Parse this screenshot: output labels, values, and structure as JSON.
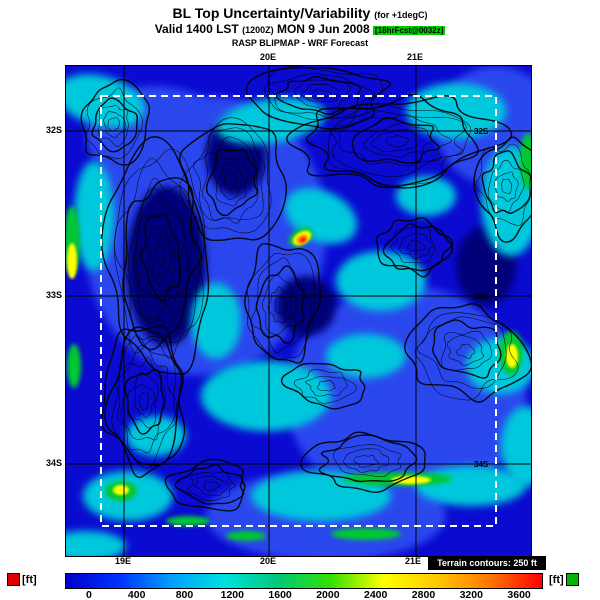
{
  "header": {
    "title_main": "BL Top Uncertainty/Variability",
    "title_note": "(for +1degC)",
    "valid_prefix": "Valid 1400 LST",
    "valid_zulu": "(1200Z)",
    "valid_date": "MON 9 Jun 2008",
    "valid_note": "[18hrFcst@0032z]",
    "valid_note_bg": "#00cc00",
    "model_line": "RASP BLIPMAP - WRF Forecast"
  },
  "map": {
    "top_ticks": [
      "20E",
      "21E"
    ],
    "bottom_ticks": [
      "19E",
      "20E",
      "21E"
    ],
    "left_ticks": [
      "32S",
      "33S",
      "34S"
    ],
    "right_ticks": [
      "32S",
      "33S",
      "34S"
    ],
    "colors": {
      "base": "#0a0ad0",
      "light_blue": "#2a46ee",
      "dark_blue": "#000078",
      "cyan": "#00c8dc",
      "green": "#00c832",
      "yellow": "#ffff00",
      "orange": "#ff9600",
      "red": "#ff1e00",
      "contour": "#000000",
      "grid": "#000000",
      "boundary_dash": "#ffffff"
    }
  },
  "legend": {
    "unit_left": "[ft]",
    "unit_right": "[ft]",
    "terrain_note": "Terrain contours: 250 ft",
    "ticks": [
      "0",
      "400",
      "800",
      "1200",
      "1600",
      "2000",
      "2400",
      "2800",
      "3200",
      "3600"
    ],
    "colors": [
      "#0000c8",
      "#0032ff",
      "#00a0ff",
      "#00e0e0",
      "#00c878",
      "#32e100",
      "#ffff00",
      "#ffc800",
      "#ff7800",
      "#ff0000"
    ]
  },
  "chart_data": {
    "type": "heatmap",
    "title": "BL Top Uncertainty/Variability (for +1degC)",
    "subtitle": "Valid 1400 LST (1200Z) MON 9 Jun 2008 [18hrFcst@0032z]",
    "source": "RASP BLIPMAP - WRF Forecast",
    "colorbar": {
      "unit": "ft",
      "min": 0,
      "max": 3600,
      "step": 400,
      "tick_values": [
        0,
        400,
        800,
        1200,
        1600,
        2000,
        2400,
        2800,
        3200,
        3600
      ]
    },
    "x_tick_labels": [
      "19E",
      "20E",
      "21E"
    ],
    "y_tick_labels": [
      "32S",
      "33S",
      "34S"
    ],
    "annotations": [
      "Terrain contours: 250 ft"
    ]
  }
}
